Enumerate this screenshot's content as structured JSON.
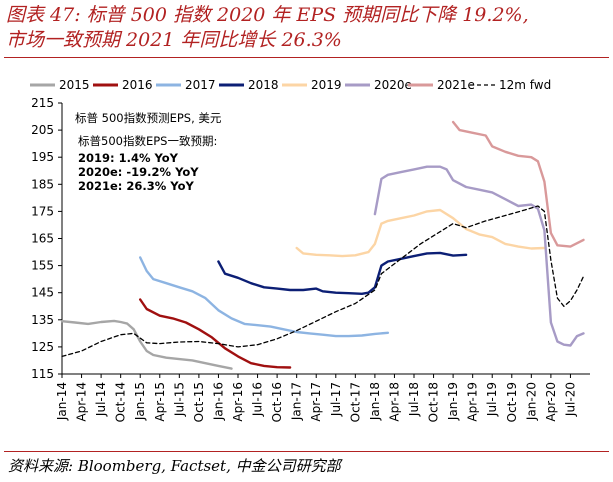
{
  "header": {
    "title_line1": "图表 47: 标普 500 指数 2020 年 EPS 预期同比下降 19.2%,",
    "title_line2": "市场一致预期 2021 年同比增长 26.3%"
  },
  "footer": {
    "source": "资料来源: Bloomberg, Factset, 中金公司研究部"
  },
  "colors": {
    "title": "#b22222",
    "s2015": "#a6a6a6",
    "s2016": "#a01010",
    "s2017": "#8db4e2",
    "s2018": "#0c1f75",
    "s2019": "#fcd5a5",
    "s2020e": "#a79bc6",
    "s2021e": "#d9999a",
    "fwd": "#000000"
  },
  "chart_data": {
    "type": "line",
    "ylabel": "标普 500指数预测EPS, 美元",
    "ylim": [
      115,
      215
    ],
    "yticks": [
      115,
      125,
      135,
      145,
      155,
      165,
      175,
      185,
      195,
      205,
      215
    ],
    "xlim": [
      "2014-01",
      "2020-10"
    ],
    "xtick_labels": [
      "Jan-14",
      "Apr-14",
      "Jul-14",
      "Oct-14",
      "Jan-15",
      "Apr-15",
      "Jul-15",
      "Oct-15",
      "Jan-16",
      "Apr-16",
      "Jul-16",
      "Oct-16",
      "Jan-17",
      "Apr-17",
      "Jul-17",
      "Oct-17",
      "Jan-18",
      "Apr-18",
      "Jul-18",
      "Oct-18",
      "Jan-19",
      "Apr-19",
      "Jul-19",
      "Oct-19",
      "Jan-20",
      "Apr-20",
      "Jul-20"
    ],
    "annotation": {
      "heading": "标普500指数EPS一致预期:",
      "lines": [
        "2019: 1.4% YoY",
        "2020e: -19.2% YoY",
        "2021e: 26.3% YoY"
      ]
    },
    "series": [
      {
        "name": "2015",
        "key": "s2015",
        "dashed": false,
        "points": [
          [
            "2014-01",
            134.5
          ],
          [
            "2014-03",
            134.0
          ],
          [
            "2014-05",
            133.5
          ],
          [
            "2014-07",
            134.2
          ],
          [
            "2014-09",
            134.6
          ],
          [
            "2014-10",
            134.2
          ],
          [
            "2014-11",
            133.6
          ],
          [
            "2014-12",
            131.5
          ],
          [
            "2015-01",
            127.0
          ],
          [
            "2015-02",
            123.5
          ],
          [
            "2015-03",
            122.0
          ],
          [
            "2015-05",
            121.0
          ],
          [
            "2015-07",
            120.5
          ],
          [
            "2015-09",
            120.0
          ],
          [
            "2015-11",
            119.0
          ],
          [
            "2016-01",
            118.0
          ],
          [
            "2016-03",
            117.0
          ]
        ]
      },
      {
        "name": "2016",
        "key": "s2016",
        "dashed": false,
        "points": [
          [
            "2015-01",
            142.5
          ],
          [
            "2015-02",
            139.0
          ],
          [
            "2015-04",
            136.5
          ],
          [
            "2015-06",
            135.5
          ],
          [
            "2015-08",
            134.0
          ],
          [
            "2015-10",
            131.5
          ],
          [
            "2015-12",
            128.5
          ],
          [
            "2016-02",
            124.5
          ],
          [
            "2016-04",
            121.5
          ],
          [
            "2016-06",
            119.0
          ],
          [
            "2016-08",
            118.0
          ],
          [
            "2016-10",
            117.5
          ],
          [
            "2016-12",
            117.4
          ]
        ]
      },
      {
        "name": "2017",
        "key": "s2017",
        "dashed": false,
        "points": [
          [
            "2015-01",
            158.0
          ],
          [
            "2015-02",
            153.0
          ],
          [
            "2015-03",
            150.0
          ],
          [
            "2015-05",
            148.5
          ],
          [
            "2015-07",
            147.0
          ],
          [
            "2015-09",
            145.5
          ],
          [
            "2015-11",
            143.0
          ],
          [
            "2016-01",
            138.5
          ],
          [
            "2016-03",
            135.5
          ],
          [
            "2016-05",
            133.5
          ],
          [
            "2016-07",
            133.0
          ],
          [
            "2016-09",
            132.5
          ],
          [
            "2016-11",
            131.5
          ],
          [
            "2017-01",
            130.5
          ],
          [
            "2017-03",
            130.0
          ],
          [
            "2017-05",
            129.5
          ],
          [
            "2017-07",
            129.0
          ],
          [
            "2017-09",
            129.0
          ],
          [
            "2017-11",
            129.2
          ],
          [
            "2018-01",
            129.8
          ],
          [
            "2018-03",
            130.2
          ]
        ]
      },
      {
        "name": "2018",
        "key": "s2018",
        "dashed": false,
        "points": [
          [
            "2016-01",
            156.5
          ],
          [
            "2016-02",
            152.0
          ],
          [
            "2016-04",
            150.5
          ],
          [
            "2016-06",
            148.5
          ],
          [
            "2016-08",
            147.0
          ],
          [
            "2016-10",
            146.5
          ],
          [
            "2016-12",
            146.0
          ],
          [
            "2017-02",
            146.0
          ],
          [
            "2017-04",
            146.5
          ],
          [
            "2017-05",
            145.5
          ],
          [
            "2017-07",
            145.0
          ],
          [
            "2017-09",
            144.8
          ],
          [
            "2017-11",
            144.6
          ],
          [
            "2017-12",
            145.0
          ],
          [
            "2018-01",
            147.0
          ],
          [
            "2018-02",
            155.0
          ],
          [
            "2018-03",
            156.5
          ],
          [
            "2018-05",
            157.5
          ],
          [
            "2018-07",
            158.5
          ],
          [
            "2018-09",
            159.5
          ],
          [
            "2018-11",
            159.7
          ],
          [
            "2019-01",
            158.7
          ],
          [
            "2019-03",
            159.0
          ]
        ]
      },
      {
        "name": "2019",
        "key": "s2019",
        "dashed": false,
        "points": [
          [
            "2017-01",
            161.5
          ],
          [
            "2017-02",
            159.5
          ],
          [
            "2017-04",
            159.0
          ],
          [
            "2017-06",
            158.8
          ],
          [
            "2017-08",
            158.5
          ],
          [
            "2017-10",
            158.8
          ],
          [
            "2017-12",
            160.0
          ],
          [
            "2018-01",
            163.0
          ],
          [
            "2018-02",
            170.5
          ],
          [
            "2018-03",
            171.5
          ],
          [
            "2018-05",
            172.5
          ],
          [
            "2018-07",
            173.5
          ],
          [
            "2018-09",
            175.0
          ],
          [
            "2018-11",
            175.5
          ],
          [
            "2019-01",
            172.5
          ],
          [
            "2019-03",
            168.5
          ],
          [
            "2019-05",
            166.5
          ],
          [
            "2019-07",
            165.5
          ],
          [
            "2019-09",
            163.0
          ],
          [
            "2019-11",
            162.0
          ],
          [
            "2020-01",
            161.3
          ],
          [
            "2020-03",
            161.5
          ]
        ]
      },
      {
        "name": "2020e",
        "key": "s2020e",
        "dashed": false,
        "points": [
          [
            "2018-01",
            174.0
          ],
          [
            "2018-02",
            187.0
          ],
          [
            "2018-03",
            188.5
          ],
          [
            "2018-05",
            189.5
          ],
          [
            "2018-07",
            190.5
          ],
          [
            "2018-09",
            191.5
          ],
          [
            "2018-11",
            191.5
          ],
          [
            "2018-12",
            190.5
          ],
          [
            "2019-01",
            186.5
          ],
          [
            "2019-03",
            184.0
          ],
          [
            "2019-05",
            183.0
          ],
          [
            "2019-07",
            182.0
          ],
          [
            "2019-09",
            179.5
          ],
          [
            "2019-11",
            177.0
          ],
          [
            "2020-01",
            177.5
          ],
          [
            "2020-02",
            176.0
          ],
          [
            "2020-03",
            168.0
          ],
          [
            "2020-04",
            134.0
          ],
          [
            "2020-05",
            127.0
          ],
          [
            "2020-06",
            125.8
          ],
          [
            "2020-07",
            125.5
          ],
          [
            "2020-08",
            129.0
          ],
          [
            "2020-09",
            130.0
          ]
        ]
      },
      {
        "name": "2021e",
        "key": "s2021e",
        "dashed": false,
        "points": [
          [
            "2019-01",
            208.0
          ],
          [
            "2019-02",
            205.0
          ],
          [
            "2019-04",
            204.0
          ],
          [
            "2019-06",
            203.0
          ],
          [
            "2019-07",
            199.0
          ],
          [
            "2019-09",
            197.0
          ],
          [
            "2019-11",
            195.5
          ],
          [
            "2020-01",
            195.0
          ],
          [
            "2020-02",
            193.5
          ],
          [
            "2020-03",
            186.0
          ],
          [
            "2020-04",
            167.0
          ],
          [
            "2020-05",
            162.5
          ],
          [
            "2020-07",
            162.0
          ],
          [
            "2020-09",
            164.5
          ]
        ]
      },
      {
        "name": "12m fwd",
        "key": "fwd",
        "dashed": true,
        "points": [
          [
            "2014-01",
            121.5
          ],
          [
            "2014-04",
            123.5
          ],
          [
            "2014-07",
            127.0
          ],
          [
            "2014-10",
            129.5
          ],
          [
            "2014-12",
            130.0
          ],
          [
            "2015-02",
            126.5
          ],
          [
            "2015-04",
            126.2
          ],
          [
            "2015-07",
            126.8
          ],
          [
            "2015-10",
            127.0
          ],
          [
            "2016-01",
            126.2
          ],
          [
            "2016-04",
            125.0
          ],
          [
            "2016-07",
            125.8
          ],
          [
            "2016-10",
            128.0
          ],
          [
            "2017-01",
            131.0
          ],
          [
            "2017-04",
            134.5
          ],
          [
            "2017-07",
            138.0
          ],
          [
            "2017-10",
            141.0
          ],
          [
            "2018-01",
            146.0
          ],
          [
            "2018-02",
            152.0
          ],
          [
            "2018-05",
            157.5
          ],
          [
            "2018-08",
            163.0
          ],
          [
            "2018-11",
            167.5
          ],
          [
            "2019-01",
            170.5
          ],
          [
            "2019-03",
            169.0
          ],
          [
            "2019-06",
            171.5
          ],
          [
            "2019-09",
            173.5
          ],
          [
            "2019-12",
            175.5
          ],
          [
            "2020-02",
            177.0
          ],
          [
            "2020-03",
            175.0
          ],
          [
            "2020-04",
            157.0
          ],
          [
            "2020-05",
            143.0
          ],
          [
            "2020-06",
            140.0
          ],
          [
            "2020-07",
            142.0
          ],
          [
            "2020-08",
            146.0
          ],
          [
            "2020-09",
            151.0
          ]
        ]
      }
    ]
  }
}
